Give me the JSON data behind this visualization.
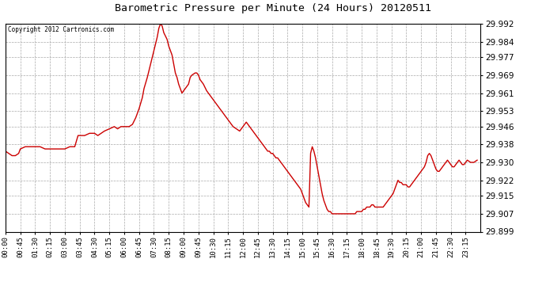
{
  "title": "Barometric Pressure per Minute (24 Hours) 20120511",
  "copyright": "Copyright 2012 Cartronics.com",
  "line_color": "#cc0000",
  "background_color": "#ffffff",
  "grid_color": "#aaaaaa",
  "ylim": [
    29.899,
    29.992
  ],
  "yticks": [
    29.899,
    29.907,
    29.915,
    29.922,
    29.93,
    29.938,
    29.946,
    29.953,
    29.961,
    29.969,
    29.977,
    29.984,
    29.992
  ],
  "xtick_labels": [
    "00:00",
    "00:45",
    "01:30",
    "02:15",
    "03:00",
    "03:45",
    "04:30",
    "05:15",
    "06:00",
    "06:45",
    "07:30",
    "08:15",
    "09:00",
    "09:45",
    "10:30",
    "11:15",
    "12:00",
    "12:45",
    "13:30",
    "14:15",
    "15:00",
    "15:45",
    "16:30",
    "17:15",
    "18:00",
    "18:45",
    "19:30",
    "20:15",
    "21:00",
    "21:45",
    "22:30",
    "23:15"
  ],
  "x_minutes": [
    0,
    45,
    90,
    135,
    180,
    225,
    270,
    315,
    360,
    405,
    450,
    495,
    540,
    585,
    630,
    675,
    720,
    765,
    810,
    855,
    900,
    945,
    990,
    1035,
    1080,
    1125,
    1170,
    1215,
    1260,
    1305,
    1350,
    1395
  ],
  "pressure_data": [
    [
      0,
      29.935
    ],
    [
      10,
      29.934
    ],
    [
      20,
      29.933
    ],
    [
      30,
      29.933
    ],
    [
      40,
      29.934
    ],
    [
      45,
      29.936
    ],
    [
      60,
      29.937
    ],
    [
      75,
      29.937
    ],
    [
      90,
      29.937
    ],
    [
      105,
      29.937
    ],
    [
      120,
      29.936
    ],
    [
      135,
      29.936
    ],
    [
      150,
      29.936
    ],
    [
      165,
      29.936
    ],
    [
      180,
      29.936
    ],
    [
      195,
      29.937
    ],
    [
      210,
      29.937
    ],
    [
      220,
      29.942
    ],
    [
      225,
      29.942
    ],
    [
      240,
      29.942
    ],
    [
      255,
      29.943
    ],
    [
      270,
      29.943
    ],
    [
      280,
      29.942
    ],
    [
      290,
      29.943
    ],
    [
      300,
      29.944
    ],
    [
      315,
      29.945
    ],
    [
      330,
      29.946
    ],
    [
      340,
      29.945
    ],
    [
      350,
      29.946
    ],
    [
      360,
      29.946
    ],
    [
      375,
      29.946
    ],
    [
      385,
      29.947
    ],
    [
      395,
      29.95
    ],
    [
      405,
      29.954
    ],
    [
      415,
      29.959
    ],
    [
      420,
      29.963
    ],
    [
      430,
      29.968
    ],
    [
      440,
      29.974
    ],
    [
      450,
      29.98
    ],
    [
      460,
      29.986
    ],
    [
      465,
      29.99
    ],
    [
      470,
      29.992
    ],
    [
      475,
      29.991
    ],
    [
      480,
      29.988
    ],
    [
      490,
      29.985
    ],
    [
      495,
      29.982
    ],
    [
      505,
      29.978
    ],
    [
      510,
      29.974
    ],
    [
      515,
      29.97
    ],
    [
      520,
      29.968
    ],
    [
      525,
      29.965
    ],
    [
      530,
      29.963
    ],
    [
      535,
      29.961
    ],
    [
      540,
      29.962
    ],
    [
      545,
      29.963
    ],
    [
      555,
      29.965
    ],
    [
      560,
      29.968
    ],
    [
      565,
      29.969
    ],
    [
      575,
      29.97
    ],
    [
      580,
      29.97
    ],
    [
      585,
      29.969
    ],
    [
      590,
      29.967
    ],
    [
      600,
      29.965
    ],
    [
      610,
      29.962
    ],
    [
      620,
      29.96
    ],
    [
      630,
      29.958
    ],
    [
      640,
      29.956
    ],
    [
      650,
      29.954
    ],
    [
      660,
      29.952
    ],
    [
      670,
      29.95
    ],
    [
      680,
      29.948
    ],
    [
      690,
      29.946
    ],
    [
      700,
      29.945
    ],
    [
      710,
      29.944
    ],
    [
      720,
      29.946
    ],
    [
      730,
      29.948
    ],
    [
      735,
      29.947
    ],
    [
      740,
      29.946
    ],
    [
      745,
      29.945
    ],
    [
      750,
      29.944
    ],
    [
      755,
      29.943
    ],
    [
      760,
      29.942
    ],
    [
      765,
      29.941
    ],
    [
      770,
      29.94
    ],
    [
      775,
      29.939
    ],
    [
      780,
      29.938
    ],
    [
      785,
      29.937
    ],
    [
      790,
      29.936
    ],
    [
      795,
      29.935
    ],
    [
      800,
      29.935
    ],
    [
      805,
      29.934
    ],
    [
      810,
      29.934
    ],
    [
      815,
      29.933
    ],
    [
      820,
      29.932
    ],
    [
      825,
      29.932
    ],
    [
      830,
      29.931
    ],
    [
      835,
      29.93
    ],
    [
      840,
      29.929
    ],
    [
      845,
      29.928
    ],
    [
      850,
      29.927
    ],
    [
      855,
      29.926
    ],
    [
      860,
      29.925
    ],
    [
      865,
      29.924
    ],
    [
      870,
      29.923
    ],
    [
      875,
      29.922
    ],
    [
      880,
      29.921
    ],
    [
      885,
      29.92
    ],
    [
      890,
      29.919
    ],
    [
      895,
      29.918
    ],
    [
      900,
      29.916
    ],
    [
      905,
      29.914
    ],
    [
      910,
      29.912
    ],
    [
      915,
      29.911
    ],
    [
      920,
      29.91
    ],
    [
      925,
      29.934
    ],
    [
      930,
      29.937
    ],
    [
      935,
      29.935
    ],
    [
      940,
      29.932
    ],
    [
      945,
      29.928
    ],
    [
      950,
      29.924
    ],
    [
      955,
      29.92
    ],
    [
      960,
      29.916
    ],
    [
      965,
      29.913
    ],
    [
      970,
      29.911
    ],
    [
      975,
      29.909
    ],
    [
      980,
      29.908
    ],
    [
      985,
      29.908
    ],
    [
      990,
      29.907
    ],
    [
      995,
      29.907
    ],
    [
      1000,
      29.907
    ],
    [
      1005,
      29.907
    ],
    [
      1010,
      29.907
    ],
    [
      1015,
      29.907
    ],
    [
      1020,
      29.907
    ],
    [
      1025,
      29.907
    ],
    [
      1030,
      29.907
    ],
    [
      1035,
      29.907
    ],
    [
      1040,
      29.907
    ],
    [
      1045,
      29.907
    ],
    [
      1050,
      29.907
    ],
    [
      1055,
      29.907
    ],
    [
      1060,
      29.907
    ],
    [
      1065,
      29.908
    ],
    [
      1070,
      29.908
    ],
    [
      1075,
      29.908
    ],
    [
      1080,
      29.908
    ],
    [
      1085,
      29.909
    ],
    [
      1090,
      29.909
    ],
    [
      1095,
      29.91
    ],
    [
      1100,
      29.91
    ],
    [
      1105,
      29.91
    ],
    [
      1110,
      29.911
    ],
    [
      1115,
      29.911
    ],
    [
      1120,
      29.91
    ],
    [
      1125,
      29.91
    ],
    [
      1130,
      29.91
    ],
    [
      1135,
      29.91
    ],
    [
      1140,
      29.91
    ],
    [
      1145,
      29.91
    ],
    [
      1150,
      29.911
    ],
    [
      1155,
      29.912
    ],
    [
      1160,
      29.913
    ],
    [
      1165,
      29.914
    ],
    [
      1170,
      29.915
    ],
    [
      1175,
      29.916
    ],
    [
      1180,
      29.918
    ],
    [
      1185,
      29.92
    ],
    [
      1190,
      29.922
    ],
    [
      1195,
      29.921
    ],
    [
      1200,
      29.921
    ],
    [
      1205,
      29.92
    ],
    [
      1210,
      29.92
    ],
    [
      1215,
      29.92
    ],
    [
      1220,
      29.919
    ],
    [
      1225,
      29.919
    ],
    [
      1230,
      29.92
    ],
    [
      1235,
      29.921
    ],
    [
      1240,
      29.922
    ],
    [
      1245,
      29.923
    ],
    [
      1250,
      29.924
    ],
    [
      1255,
      29.925
    ],
    [
      1260,
      29.926
    ],
    [
      1265,
      29.927
    ],
    [
      1270,
      29.928
    ],
    [
      1275,
      29.93
    ],
    [
      1280,
      29.933
    ],
    [
      1285,
      29.934
    ],
    [
      1290,
      29.933
    ],
    [
      1295,
      29.931
    ],
    [
      1300,
      29.929
    ],
    [
      1305,
      29.927
    ],
    [
      1310,
      29.926
    ],
    [
      1315,
      29.926
    ],
    [
      1320,
      29.927
    ],
    [
      1325,
      29.928
    ],
    [
      1330,
      29.929
    ],
    [
      1335,
      29.93
    ],
    [
      1340,
      29.931
    ],
    [
      1345,
      29.93
    ],
    [
      1350,
      29.929
    ],
    [
      1355,
      29.928
    ],
    [
      1360,
      29.928
    ],
    [
      1365,
      29.929
    ],
    [
      1370,
      29.93
    ],
    [
      1375,
      29.931
    ],
    [
      1380,
      29.93
    ],
    [
      1385,
      29.929
    ],
    [
      1390,
      29.929
    ],
    [
      1395,
      29.93
    ],
    [
      1400,
      29.931
    ],
    [
      1410,
      29.93
    ],
    [
      1420,
      29.93
    ],
    [
      1430,
      29.931
    ]
  ]
}
